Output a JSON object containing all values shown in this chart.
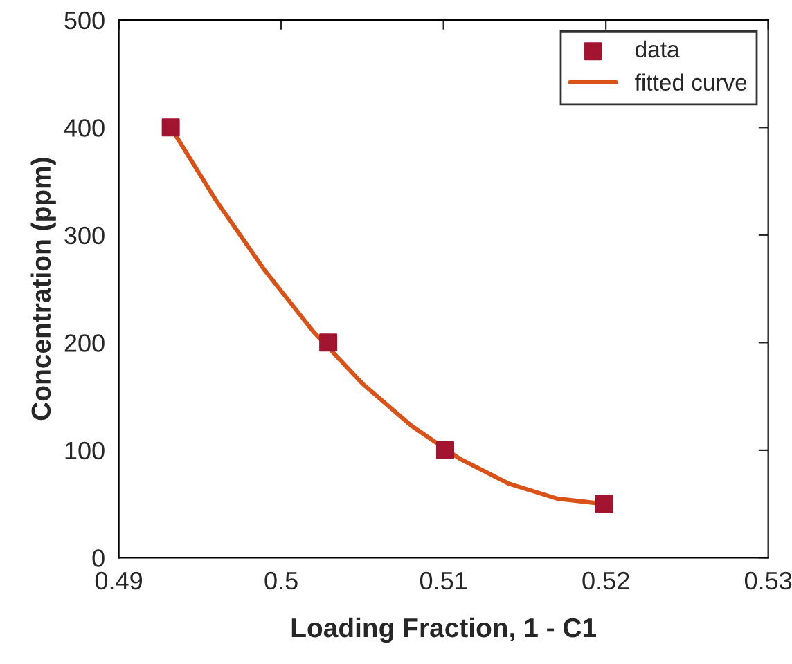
{
  "chart_data": {
    "type": "scatter",
    "xlabel": "Loading Fraction, 1 - C1",
    "ylabel": "Concentration (ppm)",
    "xlim": [
      0.49,
      0.53
    ],
    "xticks": [
      0.49,
      0.5,
      0.51,
      0.52,
      0.53
    ],
    "ylim": [
      0,
      500
    ],
    "yticks": [
      0,
      100,
      200,
      300,
      400,
      500
    ],
    "grid": false,
    "legend": "top right",
    "series": [
      {
        "name": "data",
        "marker": "square",
        "color": "#a2142f",
        "x": [
          0.4932,
          0.5029,
          0.5101,
          0.5199
        ],
        "values": [
          400,
          200,
          100,
          50
        ]
      },
      {
        "name": "fitted curve",
        "type": "line",
        "marker": "none",
        "line_style": "solid",
        "color": "#d95319",
        "x": [
          0.4932,
          0.496,
          0.499,
          0.502,
          0.505,
          0.508,
          0.511,
          0.514,
          0.517,
          0.5199
        ],
        "values": [
          400,
          332,
          267,
          210,
          162,
          123,
          92,
          69,
          55,
          50
        ]
      }
    ]
  }
}
